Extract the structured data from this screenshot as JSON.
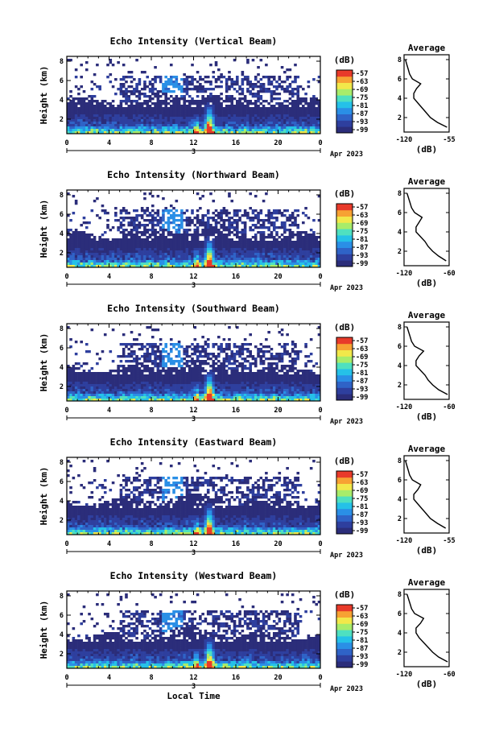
{
  "figure": {
    "date_label": "Apr 2023",
    "day_label": "3",
    "xlabel": "Local Time",
    "ylabel": "Height (km)",
    "colorbar_title": "(dB)",
    "colorbar_ticks": [
      "-57",
      "-63",
      "-69",
      "-75",
      "-81",
      "-87",
      "-93",
      "-99"
    ],
    "colorscale": [
      "#2b2d7a",
      "#2e3f9e",
      "#2f63c7",
      "#2a8fe6",
      "#25c1e8",
      "#4fe0c0",
      "#a8ec6a",
      "#f2e84a",
      "#f7a233",
      "#e83a2a"
    ],
    "profile_title": "Average",
    "profile_xlabel": "(dB)"
  },
  "chart_data": [
    {
      "type": "heatmap",
      "title": "Echo Intensity (Vertical Beam)",
      "xlabel": "Local Time",
      "ylabel": "Height (km)",
      "xticks": [
        "0",
        "4",
        "8",
        "12",
        "16",
        "20",
        "0"
      ],
      "yticks": [
        "2",
        "4",
        "6",
        "8"
      ],
      "xlim": [
        0,
        24
      ],
      "ylim": [
        0.5,
        8.5
      ],
      "zlim": [
        -99,
        -57
      ],
      "zunit": "dB",
      "profile": {
        "title": "Average",
        "xlabel": "(dB)",
        "xticks": [
          "-120",
          "-55"
        ],
        "xlim": [
          -120,
          -55
        ],
        "yticks": [
          "2",
          "4",
          "6",
          "8"
        ],
        "ylim": [
          0.5,
          8.5
        ],
        "height_km": [
          1.0,
          1.5,
          2.0,
          2.5,
          3.0,
          3.5,
          4.0,
          4.5,
          5.0,
          5.5,
          6.0,
          6.5,
          7.0,
          7.5,
          8.0
        ],
        "intensity_db": [
          -58,
          -72,
          -82,
          -88,
          -94,
          -100,
          -106,
          -106,
          -102,
          -96,
          -108,
          -112,
          -114,
          -116,
          -118
        ]
      }
    },
    {
      "type": "heatmap",
      "title": "Echo Intensity (Northward Beam)",
      "xlabel": "Local Time",
      "ylabel": "Height (km)",
      "xticks": [
        "0",
        "4",
        "8",
        "12",
        "16",
        "20",
        "0"
      ],
      "yticks": [
        "2",
        "4",
        "6",
        "8"
      ],
      "xlim": [
        0,
        24
      ],
      "ylim": [
        0.5,
        8.5
      ],
      "zlim": [
        -99,
        -57
      ],
      "zunit": "dB",
      "profile": {
        "title": "Average",
        "xlabel": "(dB)",
        "xticks": [
          "-120",
          "-60"
        ],
        "xlim": [
          -120,
          -60
        ],
        "yticks": [
          "2",
          "4",
          "6",
          "8"
        ],
        "ylim": [
          0.5,
          8.5
        ],
        "height_km": [
          1.0,
          1.5,
          2.0,
          2.5,
          3.0,
          3.5,
          4.0,
          4.5,
          5.0,
          5.5,
          6.0,
          6.5,
          7.0,
          7.5,
          8.0
        ],
        "intensity_db": [
          -64,
          -74,
          -82,
          -88,
          -92,
          -98,
          -104,
          -104,
          -100,
          -96,
          -106,
          -110,
          -112,
          -114,
          -116
        ]
      }
    },
    {
      "type": "heatmap",
      "title": "Echo Intensity (Southward Beam)",
      "xlabel": "Local Time",
      "ylabel": "Height (km)",
      "xticks": [
        "0",
        "4",
        "8",
        "12",
        "16",
        "20",
        "0"
      ],
      "yticks": [
        "2",
        "4",
        "6",
        "8"
      ],
      "xlim": [
        0,
        24
      ],
      "ylim": [
        0.5,
        8.5
      ],
      "zlim": [
        -99,
        -57
      ],
      "zunit": "dB",
      "profile": {
        "title": "Average",
        "xlabel": "(dB)",
        "xticks": [
          "-120",
          "-60"
        ],
        "xlim": [
          -120,
          -60
        ],
        "yticks": [
          "2",
          "4",
          "6",
          "8"
        ],
        "ylim": [
          0.5,
          8.5
        ],
        "height_km": [
          1.0,
          1.5,
          2.0,
          2.5,
          3.0,
          3.5,
          4.0,
          4.5,
          5.0,
          5.5,
          6.0,
          6.5,
          7.0,
          7.5,
          8.0
        ],
        "intensity_db": [
          -62,
          -74,
          -82,
          -88,
          -92,
          -98,
          -104,
          -104,
          -100,
          -94,
          -106,
          -110,
          -112,
          -114,
          -116
        ]
      }
    },
    {
      "type": "heatmap",
      "title": "Echo Intensity (Eastward Beam)",
      "xlabel": "Local Time",
      "ylabel": "Height (km)",
      "xticks": [
        "0",
        "4",
        "8",
        "12",
        "16",
        "20",
        "0"
      ],
      "yticks": [
        "2",
        "4",
        "6",
        "8"
      ],
      "xlim": [
        0,
        24
      ],
      "ylim": [
        0.5,
        8.5
      ],
      "zlim": [
        -99,
        -57
      ],
      "zunit": "dB",
      "profile": {
        "title": "Average",
        "xlabel": "(dB)",
        "xticks": [
          "-120",
          "-55"
        ],
        "xlim": [
          -120,
          -55
        ],
        "yticks": [
          "2",
          "4",
          "6",
          "8"
        ],
        "ylim": [
          0.5,
          8.5
        ],
        "height_km": [
          1.0,
          1.5,
          2.0,
          2.5,
          3.0,
          3.5,
          4.0,
          4.5,
          5.0,
          5.5,
          6.0,
          6.5,
          7.0,
          7.5,
          8.0
        ],
        "intensity_db": [
          -60,
          -72,
          -82,
          -88,
          -94,
          -100,
          -106,
          -106,
          -100,
          -96,
          -108,
          -112,
          -114,
          -116,
          -118
        ]
      }
    },
    {
      "type": "heatmap",
      "title": "Echo Intensity (Westward Beam)",
      "xlabel": "Local Time",
      "ylabel": "Height (km)",
      "xticks": [
        "0",
        "4",
        "8",
        "12",
        "16",
        "20",
        "0"
      ],
      "yticks": [
        "2",
        "4",
        "6",
        "8"
      ],
      "xlim": [
        0,
        24
      ],
      "ylim": [
        0.5,
        8.5
      ],
      "zlim": [
        -99,
        -57
      ],
      "zunit": "dB",
      "profile": {
        "title": "Average",
        "xlabel": "(dB)",
        "xticks": [
          "-120",
          "-60"
        ],
        "xlim": [
          -120,
          -60
        ],
        "yticks": [
          "2",
          "4",
          "6",
          "8"
        ],
        "ylim": [
          0.5,
          8.5
        ],
        "height_km": [
          1.0,
          1.5,
          2.0,
          2.5,
          3.0,
          3.5,
          4.0,
          4.5,
          5.0,
          5.5,
          6.0,
          6.5,
          7.0,
          7.5,
          8.0
        ],
        "intensity_db": [
          -62,
          -74,
          -82,
          -88,
          -94,
          -100,
          -104,
          -104,
          -98,
          -94,
          -106,
          -110,
          -112,
          -114,
          -116
        ]
      }
    }
  ]
}
